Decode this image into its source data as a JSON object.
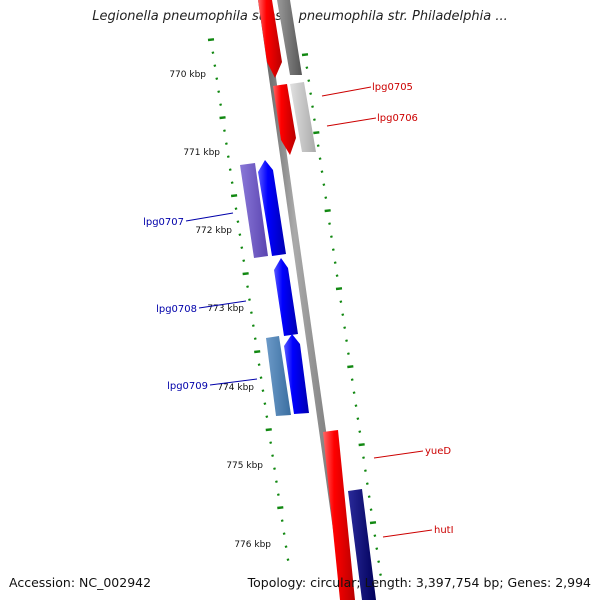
{
  "title": "Legionella pneumophila subsp. pneumophila str. Philadelphia ...",
  "footer": {
    "accession": "Accession: NC_002942",
    "summary": "Topology: circular; Length: 3,397,754 bp; Genes: 2,994"
  },
  "ticks": [
    {
      "label": "770 kbp"
    },
    {
      "label": "771 kbp"
    },
    {
      "label": "772 kbp"
    },
    {
      "label": "773 kbp"
    },
    {
      "label": "774 kbp"
    },
    {
      "label": "775 kbp"
    },
    {
      "label": "776 kbp"
    }
  ],
  "gene_labels": [
    {
      "name": "lpg0705",
      "color": "#cc0000"
    },
    {
      "name": "lpg0706",
      "color": "#cc0000"
    },
    {
      "name": "lpg0707",
      "color": "#0000aa"
    },
    {
      "name": "lpg0708",
      "color": "#0000aa"
    },
    {
      "name": "lpg0709",
      "color": "#0000aa"
    },
    {
      "name": "yueD",
      "color": "#cc0000"
    },
    {
      "name": "hutI",
      "color": "#cc0000"
    }
  ],
  "colors": {
    "forward_feature": "#ff0000",
    "reverse_feature": "#0000ff",
    "backbone": "#888888",
    "tick": "#118811"
  }
}
